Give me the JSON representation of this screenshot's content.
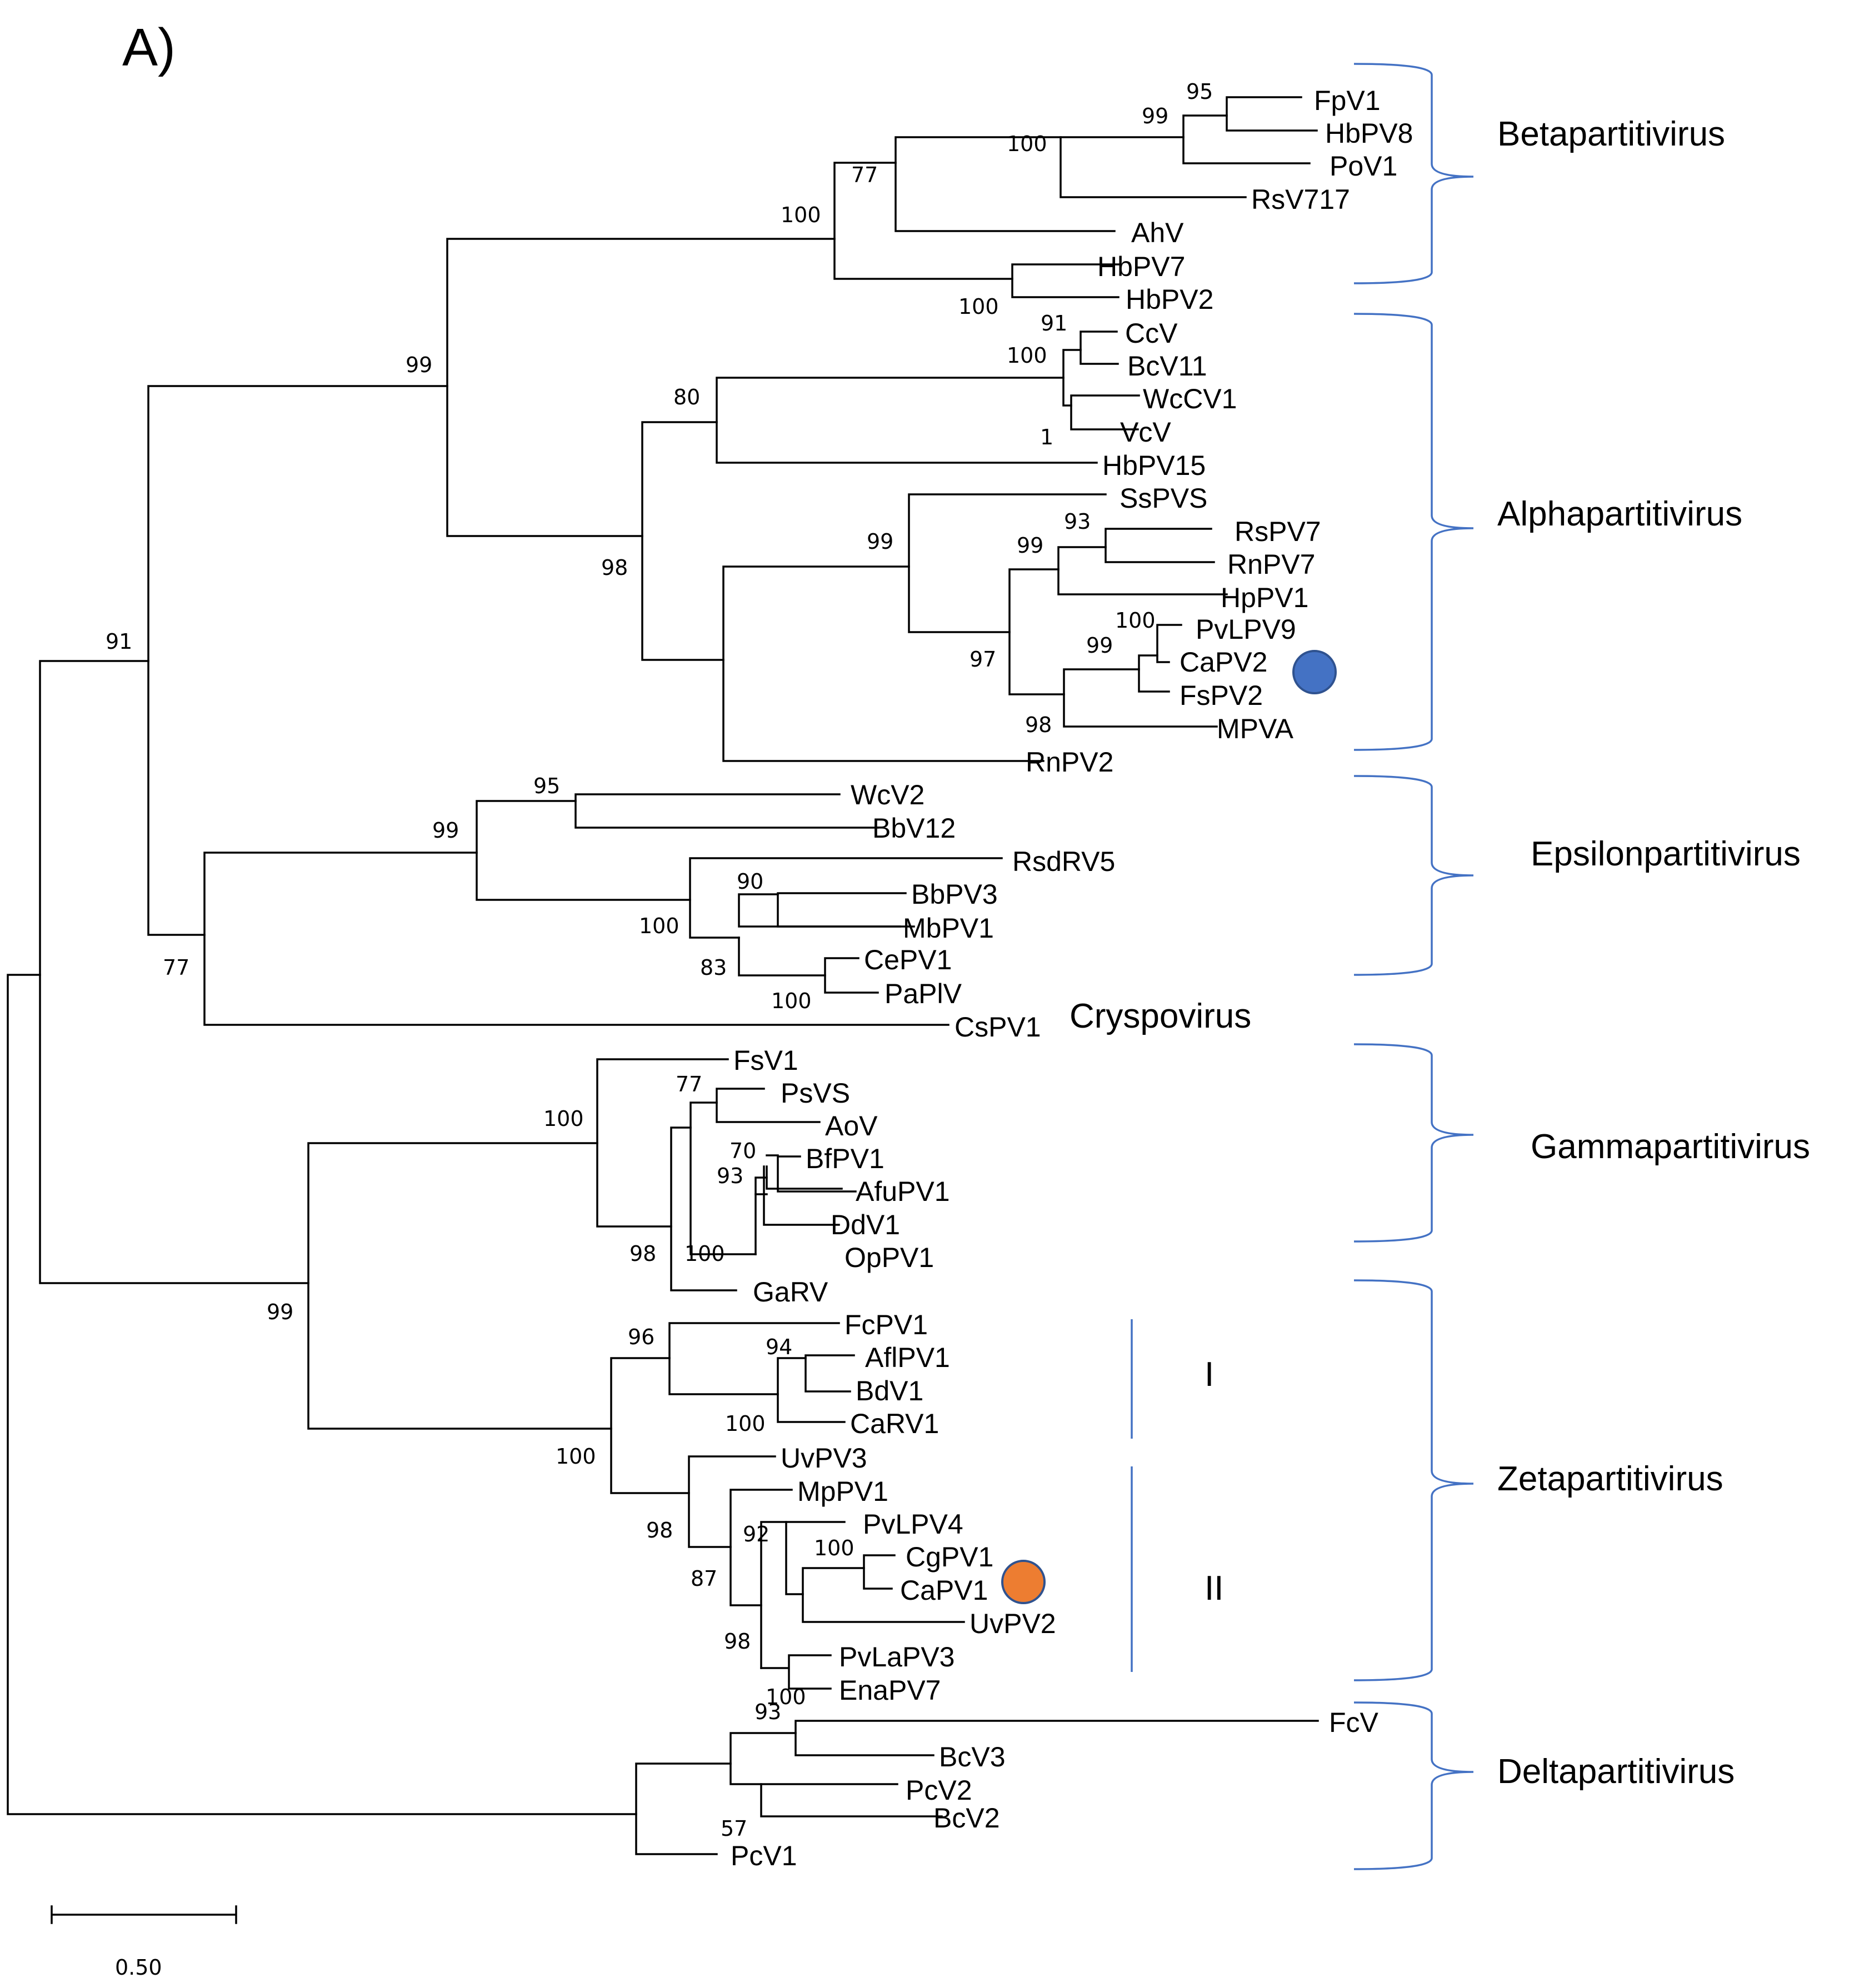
{
  "figure": {
    "panel_label": "A)",
    "scale_bar_label": "0.50",
    "colors": {
      "branch": "#000000",
      "bracket": "#4472C4",
      "marker_blue": "#4472C4",
      "marker_orange": "#ED7D31"
    }
  },
  "taxa": [
    "FpV1",
    "HbPV8",
    "PoV1",
    "RsV717",
    "AhV",
    "HbPV7",
    "HbPV2",
    "CcV",
    "BcV11",
    "WcCV1",
    "VcV",
    "HbPV15",
    "SsPVS",
    "RsPV7",
    "RnPV7",
    "HpPV1",
    "PvLPV9",
    "CaPV2",
    "FsPV2",
    "MPVA",
    "RnPV2",
    "WcV2",
    "BbV12",
    "RsdRV5",
    "BbPV3",
    "MbPV1",
    "CePV1",
    "PaPlV",
    "CsPV1",
    "FsV1",
    "PsVS",
    "AoV",
    "BfPV1",
    "AfuPV1",
    "DdV1",
    "OpPV1",
    "GaRV",
    "FcPV1",
    "AflPV1",
    "BdV1",
    "CaRV1",
    "UvPV3",
    "MpPV1",
    "PvLPV4",
    "CgPV1",
    "CaPV1",
    "UvPV2",
    "PvLaPV3",
    "EnaPV7",
    "FcV",
    "BcV3",
    "PcV2",
    "BcV2",
    "PcV1"
  ],
  "supports": [
    "95",
    "99",
    "100",
    "77",
    "100",
    "100",
    "99",
    "91",
    "100",
    "1",
    "80",
    "99",
    "98",
    "99",
    "93",
    "100",
    "99",
    "97",
    "98",
    "91",
    "95",
    "99",
    "90",
    "100",
    "83",
    "100",
    "77",
    "77",
    "70",
    "93",
    "100",
    "98",
    "100",
    "99",
    "96",
    "94",
    "100",
    "100",
    "98",
    "92",
    "100",
    "87",
    "98",
    "93",
    "100",
    "57"
  ],
  "genera": [
    "Betapartitivirus",
    "Alphapartitivirus",
    "Epsilonpartitivirus",
    "Cryspovirus",
    "Gammapartitivirus",
    "Zetapartitivirus",
    "Deltapartitivirus"
  ],
  "subgroups": [
    "I",
    "II"
  ],
  "markers": [
    {
      "taxon": "CaPV2",
      "color": "#4472C4"
    },
    {
      "taxon": "CaPV1",
      "color": "#ED7D31"
    }
  ]
}
